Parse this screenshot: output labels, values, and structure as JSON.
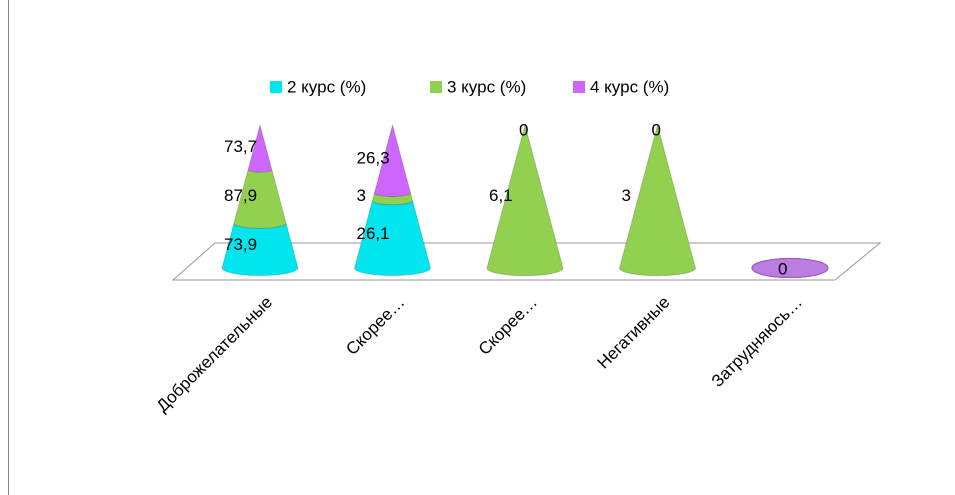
{
  "chart_data": {
    "type": "cone",
    "categories": [
      "Доброжелательные",
      "Скорее…",
      "Скорее…",
      "Негативные",
      "Затрудняюсь…"
    ],
    "series": [
      {
        "name": "2 курс (%)",
        "color": "#00e5ee",
        "values": [
          73.9,
          26.1,
          0,
          0,
          0
        ],
        "value_labels": [
          "73,9",
          "26,1",
          "0",
          "0",
          "0"
        ]
      },
      {
        "name": "3 курс (%)",
        "color": "#92d050",
        "values": [
          87.9,
          3,
          6.1,
          3,
          0
        ],
        "value_labels": [
          "87,9",
          "3",
          "6,1",
          "3",
          "0"
        ]
      },
      {
        "name": "4 курс (%)",
        "color": "#cc66ff",
        "values": [
          73.7,
          26.3,
          0,
          0,
          0
        ],
        "value_labels": [
          "73,7",
          "26,3",
          "0",
          "0",
          "0"
        ]
      }
    ],
    "legend": "top"
  }
}
